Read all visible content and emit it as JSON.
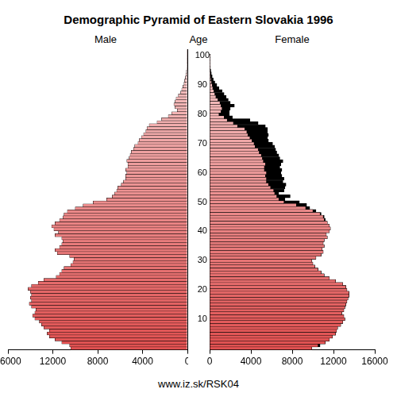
{
  "chart_data": {
    "type": "bar",
    "title": "Demographic Pyramid of Eastern Slovakia 1996",
    "orientation": "horizontal",
    "ylabel": "Age",
    "source": "www.iz.sk/RSK04",
    "categories": [
      null,
      null,
      null,
      null,
      null,
      null,
      null,
      null,
      null,
      null,
      "10",
      null,
      null,
      null,
      null,
      null,
      null,
      null,
      null,
      null,
      "20",
      null,
      null,
      null,
      null,
      null,
      null,
      null,
      null,
      null,
      "30",
      null,
      null,
      null,
      null,
      null,
      null,
      null,
      null,
      null,
      "40",
      null,
      null,
      null,
      null,
      null,
      null,
      null,
      null,
      null,
      "50",
      null,
      null,
      null,
      null,
      null,
      null,
      null,
      null,
      null,
      "60",
      null,
      null,
      null,
      null,
      null,
      null,
      null,
      null,
      null,
      "70",
      null,
      null,
      null,
      null,
      null,
      null,
      null,
      null,
      null,
      "80",
      null,
      null,
      null,
      null,
      null,
      null,
      null,
      null,
      null,
      "90",
      null,
      null,
      null,
      null,
      null,
      null,
      null,
      null,
      null,
      "100"
    ],
    "series": [
      {
        "name": "Male",
        "color": "#e05050",
        "values": [
          10400,
          10500,
          11200,
          11800,
          12300,
          12500,
          12300,
          12800,
          13000,
          13200,
          13600,
          13800,
          13600,
          13500,
          13900,
          14100,
          13900,
          14000,
          13900,
          14000,
          14200,
          13900,
          13300,
          12800,
          11700,
          11400,
          11200,
          11000,
          10400,
          10200,
          10100,
          10500,
          11600,
          11800,
          11400,
          11200,
          11100,
          11200,
          11800,
          11500,
          11900,
          12100,
          11800,
          11400,
          11100,
          11000,
          10700,
          10000,
          9300,
          8400,
          7200,
          6700,
          6500,
          6300,
          6200,
          5900,
          5700,
          5500,
          5500,
          5400,
          5500,
          5300,
          5300,
          5400,
          5200,
          5100,
          5000,
          4800,
          4700,
          4400,
          4300,
          4100,
          3900,
          3700,
          3600,
          3400,
          2700,
          2300,
          1700,
          1400,
          900,
          1100,
          1200,
          1100,
          1000,
          800,
          600,
          500,
          400,
          300,
          250,
          180,
          130,
          90,
          60,
          40,
          25,
          15,
          10,
          5,
          3
        ]
      },
      {
        "name": "Female",
        "color": "#e05050",
        "values": [
          9900,
          10700,
          11200,
          11600,
          11900,
          12200,
          12300,
          12400,
          12700,
          12900,
          13100,
          13000,
          12800,
          13000,
          13100,
          13200,
          13300,
          13400,
          13500,
          13500,
          13300,
          13200,
          12900,
          12200,
          11600,
          11100,
          10800,
          10500,
          10200,
          10000,
          9900,
          10300,
          10800,
          11000,
          10900,
          11100,
          11000,
          11100,
          11400,
          11300,
          11600,
          11700,
          11600,
          11400,
          11200,
          11100,
          10800,
          10300,
          9700,
          9400,
          8700,
          7300,
          7800,
          6700,
          7200,
          7300,
          7400,
          7100,
          7200,
          7000,
          6900,
          7000,
          6800,
          6900,
          7100,
          6800,
          6700,
          6500,
          6400,
          6300,
          6100,
          5700,
          5600,
          5700,
          5600,
          5600,
          5400,
          4700,
          3900,
          2200,
          1900,
          1900,
          2000,
          2400,
          2000,
          1800,
          1600,
          1400,
          1200,
          900,
          700,
          500,
          350,
          250,
          170,
          110,
          70,
          40,
          25,
          15,
          10
        ]
      }
    ],
    "xlim": [
      0,
      16000
    ],
    "xticks": [
      0,
      4000,
      8000,
      12000,
      16000
    ],
    "grid": false
  }
}
